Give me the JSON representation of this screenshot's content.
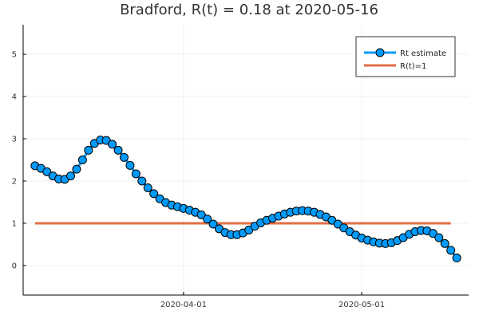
{
  "chart_data": {
    "type": "line",
    "title": "Bradford, R(t) = 0.18 at 2020-05-16",
    "xlabel": "",
    "ylabel": "",
    "x_start": "2020-03-07",
    "x_end": "2020-05-16",
    "xlim": [
      "2020-03-05",
      "2020-05-19"
    ],
    "ylim": [
      -0.7,
      5.7
    ],
    "x_ticks": [
      {
        "date": "2020-04-01",
        "label": "2020-04-01"
      },
      {
        "date": "2020-05-01",
        "label": "2020-05-01"
      }
    ],
    "y_ticks": [
      0,
      1,
      2,
      3,
      4,
      5
    ],
    "grid": true,
    "legend_position": "top-right",
    "series": [
      {
        "name": "Rt estimate",
        "color": "#009AFA",
        "marker": "circle",
        "values": [
          2.36,
          2.3,
          2.22,
          2.12,
          2.05,
          2.04,
          2.12,
          2.28,
          2.5,
          2.73,
          2.89,
          2.97,
          2.96,
          2.87,
          2.73,
          2.56,
          2.37,
          2.17,
          2.0,
          1.84,
          1.7,
          1.58,
          1.49,
          1.43,
          1.39,
          1.35,
          1.31,
          1.26,
          1.2,
          1.1,
          0.98,
          0.87,
          0.78,
          0.73,
          0.73,
          0.77,
          0.84,
          0.93,
          1.01,
          1.07,
          1.12,
          1.17,
          1.22,
          1.26,
          1.29,
          1.3,
          1.29,
          1.26,
          1.21,
          1.15,
          1.07,
          0.98,
          0.89,
          0.8,
          0.72,
          0.65,
          0.6,
          0.56,
          0.53,
          0.52,
          0.54,
          0.59,
          0.66,
          0.74,
          0.8,
          0.83,
          0.82,
          0.76,
          0.66,
          0.52,
          0.36,
          0.18
        ]
      },
      {
        "name": "R(t)=1",
        "color": "#E26F46",
        "values": [
          1,
          1
        ]
      }
    ]
  }
}
